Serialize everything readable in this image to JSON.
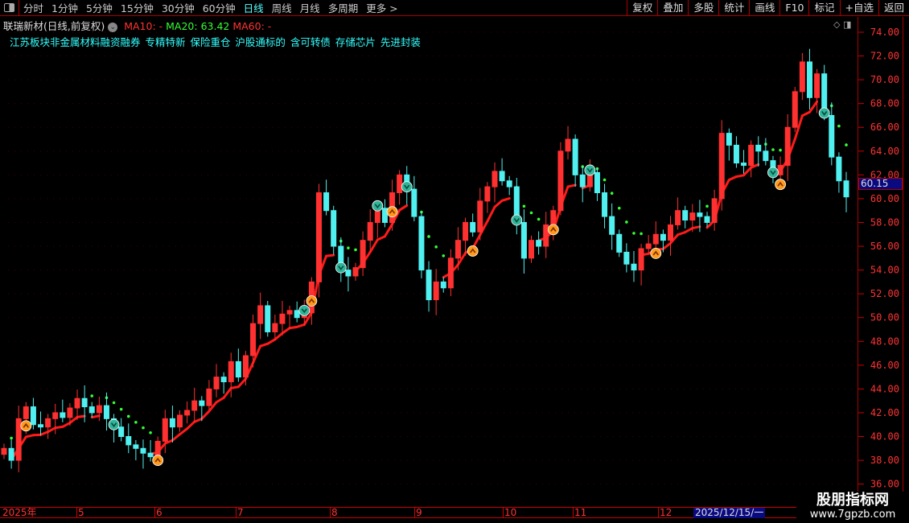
{
  "toolbar": {
    "periods": [
      "分时",
      "1分钟",
      "5分钟",
      "15分钟",
      "30分钟",
      "60分钟",
      "日线",
      "周线",
      "月线",
      "多周期",
      "更多 >"
    ],
    "active_period": "日线",
    "buttons": [
      "复权",
      "叠加",
      "多股",
      "统计",
      "画线",
      "F10",
      "标记",
      "+自选",
      "返回"
    ]
  },
  "info": {
    "title": "联瑞新材(日线,前复权)",
    "ma10": "MA10: -",
    "ma20": "MA20: 63.42",
    "ma60": "MA60: -"
  },
  "tags": "江苏板块非金属材料融资融券 专精特新 保险重仓 沪股通标的 含可转债 存储芯片 先进封装",
  "current_price": "60.15",
  "x_axis": {
    "labels": [
      "2025年",
      "5",
      "6",
      "7",
      "8",
      "9",
      "10",
      "11",
      "12"
    ],
    "cursor_date": "2025/12/15/一"
  },
  "watermark": {
    "name": "股朋指标网",
    "url": "www.7gpzb.com"
  },
  "colors": {
    "up": "#ff3030",
    "down": "#50f0f0",
    "ma_line": "#ff1a1a",
    "dots": "#33ff33",
    "buy": "#ff9a1a",
    "sell": "#2fb59a"
  },
  "chart_data": {
    "type": "candlestick",
    "y_ticks": [
      "74.00",
      "72.00",
      "70.00",
      "68.00",
      "66.00",
      "64.00",
      "62.00",
      "60.00",
      "58.00",
      "56.00",
      "54.00",
      "52.00",
      "50.00",
      "48.00",
      "46.00",
      "44.00",
      "42.00",
      "40.00",
      "38.00",
      "36.00"
    ],
    "ylim": [
      36,
      74
    ],
    "closes": [
      39.0,
      38.0,
      41.5,
      42.5,
      41.0,
      40.8,
      41.5,
      42.0,
      41.6,
      42.4,
      43.2,
      42.5,
      42.0,
      42.6,
      41.5,
      40.8,
      40.0,
      39.3,
      39.0,
      38.6,
      38.3,
      39.6,
      41.5,
      40.8,
      41.8,
      42.2,
      43.0,
      42.6,
      44.0,
      45.0,
      44.6,
      46.3,
      45.0,
      46.8,
      49.5,
      51.0,
      48.8,
      49.5,
      50.3,
      50.6,
      50.0,
      50.4,
      53.0,
      60.5,
      59.0,
      56.0,
      54.0,
      53.5,
      54.2,
      56.5,
      58.0,
      59.2,
      58.0,
      60.5,
      62.0,
      60.8,
      58.5,
      54.0,
      51.5,
      53.0,
      52.5,
      55.0,
      56.5,
      58.0,
      57.2,
      59.8,
      61.0,
      62.3,
      61.5,
      61.0,
      58.0,
      55.0,
      56.5,
      56.0,
      57.8,
      59.0,
      64.0,
      65.0,
      62.0,
      61.0,
      62.2,
      60.5,
      58.5,
      57.0,
      55.5,
      54.5,
      54.0,
      55.8,
      56.2,
      57.0,
      56.5,
      57.8,
      59.0,
      58.2,
      58.8,
      58.5,
      58.0,
      60.0,
      65.5,
      64.5,
      63.0,
      62.8,
      64.5,
      64.0,
      63.2,
      62.0,
      62.8,
      66.0,
      69.0,
      71.5,
      68.5,
      70.5,
      67.0,
      63.5,
      61.5,
      60.15
    ],
    "buy_signals": [
      3,
      21,
      42,
      53,
      64,
      75,
      89,
      106
    ],
    "sell_signals": [
      15,
      41,
      46,
      51,
      55,
      70,
      80,
      105,
      112
    ]
  }
}
